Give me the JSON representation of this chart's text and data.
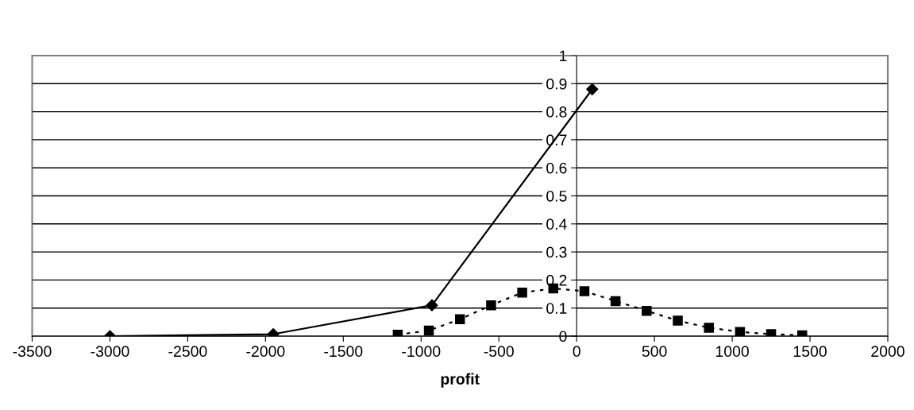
{
  "chart_data": {
    "type": "line",
    "xlabel": "profit",
    "series": [
      {
        "color": "#000000",
        "marker": "diamond",
        "line_style": "solid",
        "x": [
          -3000,
          -1950,
          -930,
          100
        ],
        "values": [
          0.0,
          0.007,
          0.11,
          0.88
        ]
      },
      {
        "color": "#000000",
        "marker": "square",
        "line_style": "dotted",
        "x": [
          -1150,
          -950,
          -750,
          -550,
          -350,
          -150,
          50,
          250,
          450,
          650,
          850,
          1050,
          1250,
          1450
        ],
        "values": [
          0.005,
          0.02,
          0.06,
          0.11,
          0.155,
          0.17,
          0.16,
          0.125,
          0.09,
          0.055,
          0.03,
          0.015,
          0.007,
          0.003
        ]
      }
    ],
    "xlim": [
      -3500,
      2000
    ],
    "xticks": [
      -3500,
      -3000,
      -2500,
      -2000,
      -1500,
      -1000,
      -500,
      0,
      500,
      1000,
      1500,
      2000
    ],
    "ylim": [
      0,
      1
    ],
    "yticks": [
      0,
      0.1,
      0.2,
      0.3,
      0.4,
      0.5,
      0.6,
      0.7,
      0.8,
      0.9,
      1
    ],
    "grid": "y",
    "legend": false
  }
}
